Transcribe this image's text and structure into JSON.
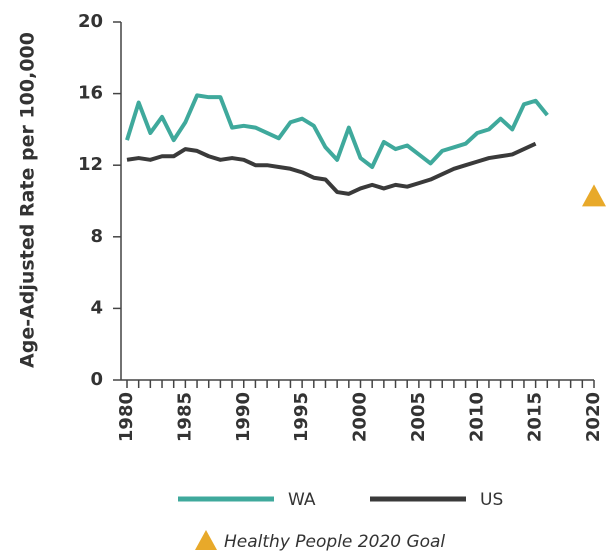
{
  "chart_data": {
    "type": "line",
    "y_label": "Age-Adjusted Rate per 100,000",
    "x": [
      1980,
      1981,
      1982,
      1983,
      1984,
      1985,
      1986,
      1987,
      1988,
      1989,
      1990,
      1991,
      1992,
      1993,
      1994,
      1995,
      1996,
      1997,
      1998,
      1999,
      2000,
      2001,
      2002,
      2003,
      2004,
      2005,
      2006,
      2007,
      2008,
      2009,
      2010,
      2011,
      2012,
      2013,
      2014,
      2015,
      2016,
      2017,
      2018,
      2019,
      2020
    ],
    "series": [
      {
        "name": "WA",
        "color": "#3fa99c",
        "values": [
          13.4,
          15.5,
          13.8,
          14.7,
          13.4,
          14.4,
          15.9,
          15.8,
          15.8,
          14.1,
          14.2,
          14.1,
          13.8,
          13.5,
          14.4,
          14.6,
          14.2,
          13.0,
          12.3,
          14.1,
          12.4,
          11.9,
          13.3,
          12.9,
          13.1,
          12.6,
          12.1,
          12.8,
          13.0,
          13.2,
          13.8,
          14.0,
          14.6,
          14.0,
          15.4,
          15.6,
          14.8,
          null,
          null,
          null,
          null
        ]
      },
      {
        "name": "US",
        "color": "#3a3a3a",
        "values": [
          12.3,
          12.4,
          12.3,
          12.5,
          12.5,
          12.9,
          12.8,
          12.5,
          12.3,
          12.4,
          12.3,
          12.0,
          12.0,
          11.9,
          11.8,
          11.6,
          11.3,
          11.2,
          10.5,
          10.4,
          10.7,
          10.9,
          10.7,
          10.9,
          10.8,
          11.0,
          11.2,
          11.5,
          11.8,
          12.0,
          12.2,
          12.4,
          12.5,
          12.6,
          12.9,
          13.2,
          null,
          null,
          null,
          null,
          null
        ]
      }
    ],
    "goal": {
      "name": "Healthy People 2020 Goal",
      "x": 2020,
      "value": 10.2,
      "color": "#e8a92a"
    },
    "xlim": [
      1980,
      2020
    ],
    "xticks": [
      1980,
      1985,
      1990,
      1995,
      2000,
      2005,
      2010,
      2015,
      2020
    ],
    "ylim": [
      0,
      20
    ],
    "yticks": [
      0,
      4,
      8,
      12,
      16,
      20
    ]
  }
}
